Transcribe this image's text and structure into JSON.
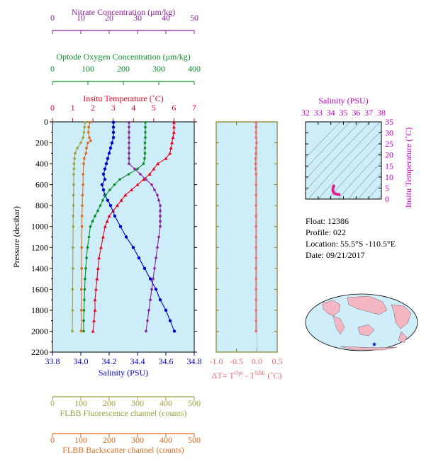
{
  "colors": {
    "temperature": "#e8001c",
    "salinity": "#0000c8",
    "oxygen": "#0a8c28",
    "nitrate": "#8b1f9b",
    "fluorescence": "#a0a040",
    "backscatter": "#e06a1c",
    "delta": "#f06a6a",
    "ts": "#e0208c",
    "plot_bg": "#cdeef8",
    "axis": "#808020",
    "salinity_label": "#c000c0"
  },
  "info": {
    "float": "Float:  12386",
    "profile": "Profile:  022",
    "location": "Location:  55.5°S  -110.5°E",
    "date": "Date:  09/21/2017"
  },
  "chart_data": [
    {
      "type": "line",
      "title": "",
      "ylabel": "Pressure (decibar)",
      "ylim": [
        2200,
        0
      ],
      "yticks": [
        0,
        200,
        400,
        600,
        800,
        1000,
        1200,
        1400,
        1600,
        1800,
        2000,
        2200
      ],
      "axes": [
        {
          "label": "Nitrate Concentration (μm/kg)",
          "range": [
            0,
            50
          ],
          "ticks": [
            0,
            10,
            20,
            30,
            40,
            50
          ]
        },
        {
          "label": "Optode Oxygen Concentration (μm/kg)",
          "range": [
            0,
            400
          ],
          "ticks": [
            0,
            100,
            200,
            300,
            400
          ]
        },
        {
          "label": "Insitu Temperature (˚C)",
          "range": [
            0,
            7
          ],
          "ticks": [
            0,
            1,
            2,
            3,
            4,
            5,
            6,
            7
          ]
        },
        {
          "label": "Salinity (PSU)",
          "range": [
            33.8,
            34.8
          ],
          "ticks": [
            "33.8",
            "34.0",
            "34.2",
            "34.4",
            "34.6",
            "34.8"
          ]
        },
        {
          "label": "FLBB Fluorescence channel (counts)",
          "range": [
            0,
            500
          ],
          "ticks": [
            0,
            100,
            200,
            300,
            400,
            500
          ]
        },
        {
          "label": "FLBB Backscatter channel (counts)",
          "range": [
            0,
            500
          ],
          "ticks": [
            0,
            100,
            200,
            300,
            400,
            500
          ]
        }
      ],
      "series": [
        {
          "key": "temperature",
          "axis": 2,
          "points": [
            [
              6.0,
              5
            ],
            [
              6.0,
              50
            ],
            [
              6.0,
              100
            ],
            [
              5.95,
              150
            ],
            [
              5.9,
              200
            ],
            [
              5.85,
              250
            ],
            [
              5.8,
              300
            ],
            [
              5.6,
              350
            ],
            [
              5.2,
              400
            ],
            [
              5.0,
              450
            ],
            [
              4.8,
              500
            ],
            [
              4.5,
              550
            ],
            [
              4.2,
              600
            ],
            [
              3.9,
              650
            ],
            [
              3.6,
              700
            ],
            [
              3.4,
              750
            ],
            [
              3.2,
              800
            ],
            [
              3.0,
              850
            ],
            [
              2.8,
              900
            ],
            [
              2.7,
              950
            ],
            [
              2.6,
              1000
            ],
            [
              2.5,
              1100
            ],
            [
              2.4,
              1200
            ],
            [
              2.3,
              1300
            ],
            [
              2.25,
              1400
            ],
            [
              2.2,
              1500
            ],
            [
              2.15,
              1600
            ],
            [
              2.1,
              1700
            ],
            [
              2.1,
              1800
            ],
            [
              2.05,
              1900
            ],
            [
              2.0,
              2000
            ]
          ]
        },
        {
          "key": "salinity",
          "axis": 3,
          "points": [
            [
              34.23,
              5
            ],
            [
              34.23,
              50
            ],
            [
              34.23,
              100
            ],
            [
              34.23,
              150
            ],
            [
              34.22,
              200
            ],
            [
              34.21,
              250
            ],
            [
              34.2,
              300
            ],
            [
              34.19,
              350
            ],
            [
              34.18,
              400
            ],
            [
              34.17,
              450
            ],
            [
              34.16,
              500
            ],
            [
              34.17,
              550
            ],
            [
              34.15,
              600
            ],
            [
              34.16,
              650
            ],
            [
              34.17,
              700
            ],
            [
              34.19,
              750
            ],
            [
              34.21,
              800
            ],
            [
              34.24,
              900
            ],
            [
              34.28,
              1000
            ],
            [
              34.32,
              1100
            ],
            [
              34.37,
              1200
            ],
            [
              34.41,
              1300
            ],
            [
              34.45,
              1400
            ],
            [
              34.49,
              1500
            ],
            [
              34.53,
              1600
            ],
            [
              34.56,
              1700
            ],
            [
              34.6,
              1800
            ],
            [
              34.63,
              1900
            ],
            [
              34.66,
              2000
            ]
          ]
        },
        {
          "key": "oxygen",
          "axis": 1,
          "points": [
            [
              262,
              5
            ],
            [
              262,
              50
            ],
            [
              262,
              100
            ],
            [
              262,
              150
            ],
            [
              261,
              200
            ],
            [
              261,
              250
            ],
            [
              261,
              300
            ],
            [
              260,
              350
            ],
            [
              257,
              400
            ],
            [
              240,
              450
            ],
            [
              215,
              500
            ],
            [
              190,
              550
            ],
            [
              175,
              600
            ],
            [
              162,
              650
            ],
            [
              150,
              700
            ],
            [
              142,
              750
            ],
            [
              135,
              800
            ],
            [
              128,
              850
            ],
            [
              120,
              900
            ],
            [
              113,
              950
            ],
            [
              107,
              1000
            ],
            [
              103,
              1100
            ],
            [
              99,
              1200
            ],
            [
              96,
              1300
            ],
            [
              94,
              1400
            ],
            [
              92,
              1500
            ],
            [
              91,
              1600
            ],
            [
              90,
              1700
            ],
            [
              89,
              1800
            ],
            [
              88,
              1900
            ],
            [
              88,
              2000
            ]
          ]
        },
        {
          "key": "nitrate",
          "axis": 0,
          "points": [
            [
              27,
              5
            ],
            [
              27,
              50
            ],
            [
              27,
              100
            ],
            [
              27,
              150
            ],
            [
              27,
              200
            ],
            [
              27,
              250
            ],
            [
              27,
              300
            ],
            [
              27,
              350
            ],
            [
              27,
              400
            ],
            [
              29,
              450
            ],
            [
              31,
              500
            ],
            [
              33,
              550
            ],
            [
              35,
              600
            ],
            [
              36,
              650
            ],
            [
              37,
              700
            ],
            [
              37.5,
              750
            ],
            [
              38,
              800
            ],
            [
              38,
              850
            ],
            [
              38,
              900
            ],
            [
              38,
              950
            ],
            [
              38,
              1000
            ],
            [
              37.5,
              1100
            ],
            [
              37,
              1200
            ],
            [
              36.5,
              1300
            ],
            [
              36,
              1400
            ],
            [
              35.5,
              1500
            ],
            [
              35,
              1600
            ],
            [
              34.5,
              1700
            ],
            [
              34,
              1800
            ],
            [
              33.5,
              1900
            ],
            [
              33,
              2000
            ]
          ]
        },
        {
          "key": "fluorescence",
          "axis": 4,
          "points": [
            [
              115,
              5
            ],
            [
              113,
              50
            ],
            [
              111,
              100
            ],
            [
              108,
              150
            ],
            [
              100,
              200
            ],
            [
              88,
              250
            ],
            [
              80,
              300
            ],
            [
              78,
              350
            ],
            [
              76,
              400
            ],
            [
              76,
              450
            ],
            [
              75,
              500
            ],
            [
              75,
              600
            ],
            [
              74,
              700
            ],
            [
              74,
              800
            ],
            [
              73,
              900
            ],
            [
              73,
              1000
            ],
            [
              72,
              1200
            ],
            [
              72,
              1400
            ],
            [
              71,
              1600
            ],
            [
              71,
              1800
            ],
            [
              70,
              2000
            ]
          ]
        },
        {
          "key": "backscatter",
          "axis": 5,
          "points": [
            [
              132,
              5
            ],
            [
              128,
              50
            ],
            [
              127,
              100
            ],
            [
              130,
              150
            ],
            [
              135,
              180
            ],
            [
              125,
              200
            ],
            [
              120,
              250
            ],
            [
              118,
              300
            ],
            [
              112,
              350
            ],
            [
              110,
              400
            ],
            [
              108,
              500
            ],
            [
              108,
              600
            ],
            [
              106,
              700
            ],
            [
              105,
              800
            ],
            [
              104,
              900
            ],
            [
              104,
              1000
            ],
            [
              103,
              1200
            ],
            [
              103,
              1400
            ],
            [
              102,
              1600
            ],
            [
              102,
              1800
            ],
            [
              101,
              2000
            ]
          ]
        }
      ]
    },
    {
      "type": "line",
      "xlabel": "ΔT= T",
      "xlabel_sup1": "Opt",
      "xlabel_mid": " - T",
      "xlabel_sup2": "SBE",
      "xlabel_unit": " (˚C)",
      "xlim": [
        -1.0,
        0.5
      ],
      "xticks": [
        "-1.0",
        "-0.5",
        "0.0",
        "0.5"
      ],
      "ylim": [
        2200,
        0
      ],
      "series": [
        {
          "key": "delta",
          "points": [
            [
              -0.02,
              5
            ],
            [
              -0.02,
              50
            ],
            [
              -0.02,
              100
            ],
            [
              -0.02,
              150
            ],
            [
              -0.01,
              200
            ],
            [
              -0.02,
              250
            ],
            [
              -0.02,
              300
            ],
            [
              -0.03,
              350
            ],
            [
              -0.03,
              400
            ],
            [
              -0.03,
              450
            ],
            [
              -0.02,
              500
            ],
            [
              -0.02,
              600
            ],
            [
              -0.02,
              700
            ],
            [
              -0.02,
              800
            ],
            [
              -0.02,
              900
            ],
            [
              -0.02,
              1000
            ],
            [
              -0.02,
              1100
            ],
            [
              -0.02,
              1200
            ],
            [
              -0.02,
              1300
            ],
            [
              -0.02,
              1400
            ],
            [
              -0.02,
              1500
            ],
            [
              -0.02,
              1600
            ],
            [
              -0.02,
              1700
            ],
            [
              -0.02,
              1800
            ],
            [
              -0.02,
              1900
            ],
            [
              -0.02,
              2000
            ]
          ]
        }
      ]
    },
    {
      "type": "scatter",
      "xlabel": "Salinity (PSU)",
      "ylabel": "Insitu Temperature (˚C)",
      "xlim": [
        32,
        38
      ],
      "ylim": [
        0,
        35
      ],
      "xticks": [
        32,
        33,
        34,
        35,
        36,
        37,
        38
      ],
      "yticks": [
        0,
        5,
        10,
        15,
        20,
        25,
        30,
        35
      ],
      "series": [
        {
          "key": "ts",
          "points": [
            [
              34.23,
              6.0
            ],
            [
              34.23,
              5.9
            ],
            [
              34.2,
              5.5
            ],
            [
              34.17,
              4.8
            ],
            [
              34.16,
              4.2
            ],
            [
              34.17,
              3.6
            ],
            [
              34.21,
              3.2
            ],
            [
              34.28,
              2.6
            ],
            [
              34.37,
              2.4
            ],
            [
              34.45,
              2.25
            ],
            [
              34.53,
              2.15
            ],
            [
              34.6,
              2.1
            ],
            [
              34.66,
              2.0
            ]
          ]
        }
      ]
    }
  ]
}
